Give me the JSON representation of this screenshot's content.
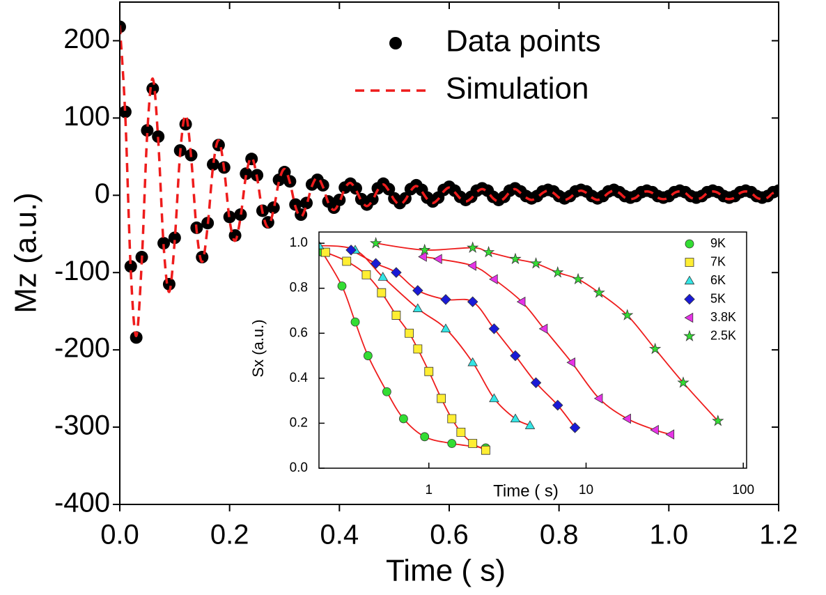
{
  "chart_data": [
    {
      "type": "oscillation",
      "xlabel": "Time (  s)",
      "ylabel": "Mz (a.u.)",
      "xlim": [
        0,
        1.2
      ],
      "ylim": [
        -400,
        250
      ],
      "xticks": [
        {
          "value": 0,
          "label": "0.0"
        },
        0.2,
        0.4,
        0.6,
        0.8,
        {
          "value": 1,
          "label": "1.0"
        },
        1.2
      ],
      "yticks": [
        -400,
        -300,
        -200,
        -100,
        0,
        100,
        200
      ],
      "legend": "upper right",
      "x": [
        0,
        0.01,
        0.02,
        0.03,
        0.04,
        0.05,
        0.06,
        0.07,
        0.08,
        0.09,
        0.1,
        0.11,
        0.12,
        0.13,
        0.14,
        0.15,
        0.16,
        0.17,
        0.18,
        0.19,
        0.2,
        0.21,
        0.22,
        0.23,
        0.24,
        0.25,
        0.26,
        0.27,
        0.28,
        0.29,
        0.3,
        0.31,
        0.32,
        0.33,
        0.34,
        0.35,
        0.36,
        0.37,
        0.38,
        0.39,
        0.4,
        0.41,
        0.42,
        0.43,
        0.44,
        0.45,
        0.46,
        0.47,
        0.48,
        0.49,
        0.5,
        0.51,
        0.52,
        0.53,
        0.54,
        0.55,
        0.56,
        0.57,
        0.58,
        0.59,
        0.6,
        0.61,
        0.62,
        0.63,
        0.64,
        0.65,
        0.66,
        0.67,
        0.68,
        0.69,
        0.7,
        0.71,
        0.72,
        0.73,
        0.74,
        0.75,
        0.76,
        0.77,
        0.78,
        0.79,
        0.8,
        0.81,
        0.82,
        0.83,
        0.84,
        0.85,
        0.86,
        0.87,
        0.88,
        0.89,
        0.9,
        0.91,
        0.92,
        0.93,
        0.94,
        0.95,
        0.96,
        0.97,
        0.98,
        0.99,
        1,
        1.01,
        1.02,
        1.03,
        1.04,
        1.05,
        1.06,
        1.07,
        1.08,
        1.09,
        1.1,
        1.11,
        1.12,
        1.13,
        1.14,
        1.15,
        1.16,
        1.17,
        1.18,
        1.19,
        1.2
      ],
      "series": [
        {
          "name": "Data points",
          "kind": "points",
          "color": "#000000",
          "values": [
            218,
            108,
            -92,
            -184,
            -80,
            84,
            138,
            76,
            -62,
            -115,
            -55,
            58,
            92,
            52,
            -42,
            -80,
            -36,
            40,
            65,
            36,
            -28,
            -52,
            -25,
            28,
            47,
            26,
            -20,
            -35,
            -16,
            20,
            30,
            18,
            -12,
            -25,
            -10,
            14,
            20,
            13,
            -8,
            -16,
            -6,
            10,
            15,
            9,
            -5,
            -12,
            -5,
            9,
            15,
            8,
            -4,
            -10,
            -4,
            8,
            13,
            7,
            -3,
            -8,
            -3,
            7,
            11,
            6,
            -2,
            -6,
            -2,
            6,
            9,
            6,
            -2,
            -6,
            -2,
            6,
            9,
            5,
            -1,
            -4,
            -1,
            5,
            7,
            5,
            -1,
            -4,
            -1,
            5,
            7,
            5,
            -1,
            -4,
            -1,
            5,
            7,
            4,
            -1,
            -3,
            -1,
            4,
            6,
            4,
            -1,
            -3,
            -1,
            4,
            6,
            4,
            -1,
            -3,
            -1,
            4,
            6,
            4,
            -1,
            -3,
            -1,
            4,
            6,
            4,
            -1,
            -3,
            -1,
            4,
            6
          ]
        },
        {
          "name": "Simulation",
          "kind": "dashed-line",
          "color": "#ee1c1c",
          "values": [
            220,
            103,
            -97,
            -182,
            -86,
            80,
            151,
            71,
            -67,
            -125,
            -59,
            55,
            104,
            49,
            -46,
            -86,
            -40,
            38,
            71,
            34,
            -32,
            -59,
            -28,
            26,
            49,
            23,
            -22,
            -41,
            -19,
            18,
            34,
            16,
            -15,
            -28,
            -13,
            12,
            23,
            11,
            -10,
            -19,
            -9,
            9,
            16,
            7,
            -7,
            -14,
            -7,
            7,
            14,
            6,
            -6,
            -12,
            -6,
            6,
            12,
            5,
            -5,
            -10,
            -5,
            5,
            10,
            4,
            -4,
            -8,
            -4,
            4,
            8,
            4,
            -4,
            -8,
            -4,
            4,
            8,
            3,
            -3,
            -6,
            -3,
            3,
            6,
            3,
            -3,
            -6,
            -3,
            3,
            6,
            3,
            -3,
            -6,
            -3,
            3,
            6,
            3,
            -3,
            -5,
            -3,
            3,
            5,
            3,
            -3,
            -5,
            -3,
            3,
            5,
            3,
            -3,
            -5,
            -3,
            3,
            5,
            3,
            -3,
            -5,
            -3,
            3,
            5,
            3,
            -3,
            -5,
            -3,
            3,
            5
          ]
        }
      ]
    },
    {
      "type": "log-scatter",
      "xlabel": "Time (  s)",
      "ylabel": "Sx (a.u.)",
      "xlim": [
        0.2,
        105
      ],
      "ylim": [
        0,
        1.05
      ],
      "xscale": "log",
      "xticks": [
        1,
        10,
        100
      ],
      "yticks": [
        {
          "value": 0,
          "label": "0.0"
        },
        0.2,
        0.4,
        0.6,
        0.8,
        {
          "value": 1,
          "label": "1.0"
        }
      ],
      "fit_color": "#ee1c1c",
      "legend": "upper right",
      "series": [
        {
          "name": "9K",
          "marker": "circle",
          "color": "#33dd33",
          "x": [
            0.21,
            0.28,
            0.34,
            0.41,
            0.54,
            0.69,
            0.94,
            1.4,
            2.3
          ],
          "values": [
            0.96,
            0.81,
            0.65,
            0.5,
            0.34,
            0.22,
            0.14,
            0.11,
            0.09
          ]
        },
        {
          "name": "7K",
          "marker": "square",
          "color": "#ffee33",
          "x": [
            0.22,
            0.3,
            0.4,
            0.5,
            0.62,
            0.75,
            0.85,
            1,
            1.2,
            1.4,
            1.6,
            1.9,
            2.3
          ],
          "values": [
            0.96,
            0.92,
            0.86,
            0.78,
            0.68,
            0.6,
            0.53,
            0.43,
            0.31,
            0.22,
            0.16,
            0.11,
            0.08
          ]
        },
        {
          "name": "6K",
          "marker": "triangle-up",
          "color": "#33e5e5",
          "x": [
            0.2,
            0.34,
            0.51,
            0.85,
            1.28,
            1.9,
            2.6,
            3.55,
            4.4
          ],
          "values": [
            0.99,
            0.97,
            0.85,
            0.71,
            0.62,
            0.47,
            0.31,
            0.22,
            0.19
          ]
        },
        {
          "name": "5K",
          "marker": "diamond",
          "color": "#1a1ad6",
          "x": [
            0.32,
            0.46,
            0.62,
            0.85,
            1.28,
            1.9,
            2.6,
            3.55,
            4.8,
            6.6,
            8.5
          ],
          "values": [
            0.97,
            0.91,
            0.87,
            0.79,
            0.75,
            0.74,
            0.62,
            0.5,
            0.38,
            0.28,
            0.18
          ]
        },
        {
          "name": "3.8K",
          "marker": "triangle-left",
          "color": "#e633e6",
          "x": [
            0.92,
            1.15,
            1.9,
            2.6,
            3.9,
            5.4,
            8.1,
            12.1,
            18.3,
            27.5,
            34.5
          ],
          "values": [
            0.94,
            0.93,
            0.9,
            0.84,
            0.74,
            0.62,
            0.47,
            0.31,
            0.22,
            0.17,
            0.15
          ]
        },
        {
          "name": "2.5K",
          "marker": "star",
          "color": "#33dd33",
          "x": [
            0.46,
            0.94,
            1.9,
            2.4,
            3.55,
            4.8,
            6.6,
            8.9,
            12.1,
            18.3,
            27.5,
            41.5,
            69
          ],
          "values": [
            1,
            0.97,
            0.98,
            0.96,
            0.93,
            0.91,
            0.87,
            0.84,
            0.78,
            0.68,
            0.53,
            0.38,
            0.21
          ]
        }
      ]
    }
  ]
}
